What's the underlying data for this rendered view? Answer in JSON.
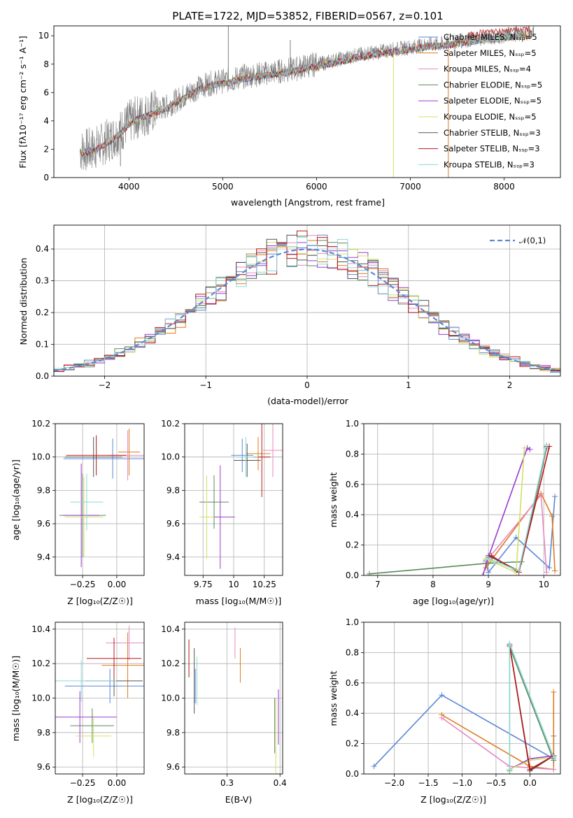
{
  "colors": [
    "#5b87d6",
    "#e07a1f",
    "#e58ac2",
    "#5a8a5a",
    "#9b3bd1",
    "#d4e063",
    "#555555",
    "#b51818",
    "#8fd6d6"
  ],
  "chart_data": [
    {
      "id": "spectrum",
      "type": "line",
      "title": "PLATE=1722, MJD=53852, FIBERID=0567, z=0.101",
      "xlabel": "wavelength [Angstrom, rest frame]",
      "ylabel": "Flux [fλ10⁻¹⁷ erg cm⁻² s⁻¹ A⁻¹]",
      "xlim": [
        3200,
        8600
      ],
      "ylim": [
        0,
        10.7
      ],
      "xticks": [
        4000,
        5000,
        6000,
        7000,
        8000
      ],
      "yticks": [
        0,
        2,
        4,
        6,
        8,
        10
      ],
      "grid": false,
      "legend_position": "top-right",
      "data_curve": {
        "x": [
          3500,
          3600,
          3700,
          3800,
          3900,
          4000,
          4100,
          4200,
          4300,
          4400,
          4500,
          4600,
          4700,
          4800,
          4900,
          5000,
          5100,
          5200,
          5300,
          5400,
          5500,
          5600,
          5700,
          5800,
          5900,
          6000,
          6100,
          6200,
          6300,
          6400,
          6500,
          6600,
          6700,
          6800,
          6900,
          7000,
          7100,
          7200,
          7300,
          7400,
          7500,
          7600,
          7700,
          7800,
          7900,
          8000,
          8100,
          8200,
          8300
        ],
        "y": [
          1.9,
          2.0,
          2.3,
          2.7,
          3.2,
          3.9,
          4.3,
          4.5,
          4.8,
          5.0,
          5.4,
          5.8,
          6.2,
          6.5,
          6.7,
          6.8,
          6.9,
          7.1,
          7.2,
          7.3,
          7.4,
          7.5,
          7.6,
          7.7,
          7.9,
          8.0,
          8.1,
          8.3,
          8.4,
          8.6,
          8.7,
          8.8,
          8.9,
          9.0,
          9.1,
          9.2,
          9.3,
          9.4,
          9.4,
          9.5,
          9.6,
          9.7,
          9.8,
          9.9,
          9.9,
          10.0,
          10.1,
          10.1,
          10.2
        ]
      },
      "series": [
        {
          "name": "Chabrier MILES, N_SSP=5"
        },
        {
          "name": "Salpeter MILES, N_SSP=5"
        },
        {
          "name": "Kroupa MILES, N_SSP=4"
        },
        {
          "name": "Chabrier ELODIE, N_SSP=5"
        },
        {
          "name": "Salpeter ELODIE, N_SSP=5"
        },
        {
          "name": "Kroupa ELODIE, N_SSP=5"
        },
        {
          "name": "Chabrier STELIB, N_SSP=3"
        },
        {
          "name": "Salpeter STELIB, N_SSP=3"
        },
        {
          "name": "Kroupa STELIB, N_SSP=3"
        }
      ]
    },
    {
      "id": "residuals",
      "type": "line",
      "title": "",
      "xlabel": "(data-model)/error",
      "ylabel": "Normed distribution",
      "xlim": [
        -2.5,
        2.5
      ],
      "ylim": [
        0,
        0.475
      ],
      "xticks": [
        -2,
        -1,
        0,
        1,
        2
      ],
      "yticks": [
        0.0,
        0.1,
        0.2,
        0.3,
        0.4
      ],
      "grid": true,
      "legend_position": "top-right",
      "legend": [
        "𝒩(0,1)"
      ],
      "bin_width": 0.1,
      "bin_start": -2.5,
      "reference_curve": {
        "name": "𝒩(0,1)",
        "mean": 0,
        "sigma": 1
      }
    },
    {
      "id": "age-vs-Z",
      "type": "scatter",
      "xlabel": "Z [log₁₀(Z/Z☉)]",
      "ylabel": "age  [log₁₀(age/yr)]",
      "xlim": [
        -0.45,
        0.2
      ],
      "ylim": [
        9.29,
        10.2
      ],
      "xticks": [
        -0.25,
        0.0
      ],
      "yticks": [
        9.4,
        9.6,
        9.8,
        10.0,
        10.2
      ],
      "grid": true,
      "points": [
        {
          "x": -0.03,
          "y": 9.99,
          "ex": 0.36,
          "ey": 0.12
        },
        {
          "x": 0.09,
          "y": 10.03,
          "ex": 0.08,
          "ey": 0.14
        },
        {
          "x": 0.08,
          "y": 10.01,
          "ex": 0.14,
          "ey": 0.15
        },
        {
          "x": -0.25,
          "y": 9.65,
          "ex": 0.17,
          "ey": 0.25
        },
        {
          "x": -0.26,
          "y": 9.65,
          "ex": 0.13,
          "ey": 0.31
        },
        {
          "x": -0.24,
          "y": 9.64,
          "ex": 0.14,
          "ey": 0.24
        },
        {
          "x": -0.17,
          "y": 10.0,
          "ex": 0.21,
          "ey": 0.12
        },
        {
          "x": -0.15,
          "y": 10.01,
          "ex": 0.22,
          "ey": 0.12
        },
        {
          "x": -0.22,
          "y": 9.73,
          "ex": 0.12,
          "ey": 0.17
        }
      ]
    },
    {
      "id": "age-vs-mass",
      "type": "scatter",
      "xlabel": "mass [log₁₀(M/M☉)]",
      "ylabel": "",
      "xlim": [
        9.6,
        10.4
      ],
      "ylim": [
        9.29,
        10.2
      ],
      "xticks": [
        9.75,
        10.0,
        10.25
      ],
      "yticks": [
        9.4,
        9.6,
        9.8,
        10.0,
        10.2
      ],
      "grid": true,
      "points": [
        {
          "x": 10.07,
          "y": 10.01,
          "ex": 0.09,
          "ey": 0.1
        },
        {
          "x": 10.2,
          "y": 10.02,
          "ex": 0.1,
          "ey": 0.1
        },
        {
          "x": 10.32,
          "y": 10.04,
          "ex": 0.08,
          "ey": 0.16
        },
        {
          "x": 9.84,
          "y": 9.73,
          "ex": 0.12,
          "ey": 0.16
        },
        {
          "x": 9.89,
          "y": 9.64,
          "ex": 0.12,
          "ey": 0.31
        },
        {
          "x": 9.78,
          "y": 9.64,
          "ex": 0.06,
          "ey": 0.25
        },
        {
          "x": 10.11,
          "y": 9.98,
          "ex": 0.11,
          "ey": 0.1
        },
        {
          "x": 10.23,
          "y": 10.0,
          "ex": 0.07,
          "ey": 0.24
        },
        {
          "x": 10.1,
          "y": 10.0,
          "ex": 0.1,
          "ey": 0.12
        }
      ]
    },
    {
      "id": "weight-vs-age",
      "type": "line",
      "xlabel": "age  [log₁₀(age/yr)]",
      "ylabel": "mass weight",
      "xlim": [
        6.75,
        10.3
      ],
      "ylim": [
        0,
        1
      ],
      "xticks": [
        7,
        8,
        9,
        10
      ],
      "yticks": [
        0.0,
        0.2,
        0.4,
        0.6,
        0.8,
        1.0
      ],
      "grid": true,
      "series": [
        {
          "x": [
            8.95,
            9.0,
            9.5,
            10.1,
            10.2
          ],
          "y": [
            0.1,
            0.02,
            0.25,
            0.05,
            0.52
          ]
        },
        {
          "x": [
            8.95,
            9.95,
            10.15,
            10.2
          ],
          "y": [
            0.05,
            0.54,
            0.39,
            0.03
          ]
        },
        {
          "x": [
            8.95,
            9.95,
            10.05
          ],
          "y": [
            0.09,
            0.53,
            0.02
          ]
        },
        {
          "x": [
            6.85,
            9.0,
            9.6,
            10.05
          ],
          "y": [
            0.01,
            0.08,
            0.09,
            0.84
          ]
        },
        {
          "x": [
            8.9,
            9.0,
            9.7,
            9.75
          ],
          "y": [
            0.0,
            0.12,
            0.84,
            0.83
          ]
        },
        {
          "x": [
            8.95,
            9.5,
            9.65
          ],
          "y": [
            0.11,
            0.02,
            0.84
          ]
        },
        {
          "x": [
            9.0,
            9.55,
            10.05
          ],
          "y": [
            0.13,
            0.03,
            0.85
          ]
        },
        {
          "x": [
            9.05,
            9.55,
            10.1
          ],
          "y": [
            0.13,
            0.02,
            0.85
          ]
        },
        {
          "x": [
            9.0,
            9.55,
            10.05
          ],
          "y": [
            0.11,
            0.03,
            0.86
          ]
        }
      ]
    },
    {
      "id": "mass-vs-Z",
      "type": "scatter",
      "xlabel": "Z [log₁₀(Z/Z☉)]",
      "ylabel": "mass [log₁₀(M/M☉)]",
      "xlim": [
        -0.45,
        0.2
      ],
      "ylim": [
        9.56,
        10.44
      ],
      "xticks": [
        -0.25,
        0.0
      ],
      "yticks": [
        9.6,
        9.8,
        10.0,
        10.2,
        10.4
      ],
      "grid": true,
      "points": [
        {
          "x": -0.05,
          "y": 10.07,
          "ex": 0.33,
          "ey": 0.1
        },
        {
          "x": 0.08,
          "y": 10.19,
          "ex": 0.19,
          "ey": 0.19
        },
        {
          "x": 0.09,
          "y": 10.32,
          "ex": 0.17,
          "ey": 0.1
        },
        {
          "x": -0.18,
          "y": 9.84,
          "ex": 0.16,
          "ey": 0.1
        },
        {
          "x": -0.27,
          "y": 9.89,
          "ex": 0.27,
          "ey": 0.15
        },
        {
          "x": -0.17,
          "y": 9.78,
          "ex": 0.13,
          "ey": 0.12
        },
        {
          "x": -0.02,
          "y": 10.1,
          "ex": 0.21,
          "ey": 0.09
        },
        {
          "x": -0.02,
          "y": 10.23,
          "ex": 0.2,
          "ey": 0.12
        },
        {
          "x": -0.26,
          "y": 10.1,
          "ex": 0.26,
          "ey": 0.12
        }
      ]
    },
    {
      "id": "mass-vs-ebv",
      "type": "scatter",
      "xlabel": "E(B-V)",
      "ylabel": "",
      "xlim": [
        0.22,
        0.405
      ],
      "ylim": [
        9.56,
        10.44
      ],
      "xticks": [
        0.3,
        0.4
      ],
      "yticks": [
        9.6,
        9.8,
        10.0,
        10.2,
        10.4
      ],
      "grid": true,
      "points": [
        {
          "x": 0.24,
          "y": 10.07,
          "ex": 0,
          "ey": 0.1
        },
        {
          "x": 0.325,
          "y": 10.19,
          "ex": 0,
          "ey": 0.1
        },
        {
          "x": 0.315,
          "y": 10.32,
          "ex": 0,
          "ey": 0.09
        },
        {
          "x": 0.39,
          "y": 9.84,
          "ex": 0,
          "ey": 0.16
        },
        {
          "x": 0.397,
          "y": 9.89,
          "ex": 0,
          "ey": 0.16
        },
        {
          "x": 0.392,
          "y": 9.78,
          "ex": 0,
          "ey": 0.22
        },
        {
          "x": 0.238,
          "y": 10.1,
          "ex": 0,
          "ey": 0.19
        },
        {
          "x": 0.228,
          "y": 10.23,
          "ex": 0,
          "ey": 0.11
        },
        {
          "x": 0.243,
          "y": 10.1,
          "ex": 0,
          "ey": 0.14
        }
      ]
    },
    {
      "id": "weight-vs-Z",
      "type": "line",
      "xlabel": "Z [log₁₀(Z/Z☉)]",
      "ylabel": "mass weight",
      "xlim": [
        -2.45,
        0.45
      ],
      "ylim": [
        0,
        1
      ],
      "xticks": [
        -2.0,
        -1.5,
        -1.0,
        -0.5,
        0.0
      ],
      "yticks": [
        0.0,
        0.2,
        0.4,
        0.6,
        0.8,
        1.0
      ],
      "grid": true,
      "series": [
        {
          "x": [
            -2.3,
            -1.3,
            0.35,
            0.35
          ],
          "y": [
            0.05,
            0.52,
            0.1,
            0.25
          ]
        },
        {
          "x": [
            -1.3,
            0.0,
            0.35,
            0.35
          ],
          "y": [
            0.39,
            0.05,
            0.03,
            0.54
          ]
        },
        {
          "x": [
            -1.3,
            -0.3,
            0.35
          ],
          "y": [
            0.37,
            0.05,
            0.03
          ]
        },
        {
          "x": [
            -0.3,
            -0.3,
            0.35
          ],
          "y": [
            0.02,
            0.84,
            0.09
          ]
        },
        {
          "x": [
            -0.3,
            0.0,
            0.35
          ],
          "y": [
            0.03,
            0.1,
            0.12
          ]
        },
        {
          "x": [
            -0.3,
            0.0,
            0.35
          ],
          "y": [
            0.03,
            0.09,
            0.11
          ]
        },
        {
          "x": [
            -0.3,
            0.0,
            0.35
          ],
          "y": [
            0.85,
            0.02,
            0.12
          ]
        },
        {
          "x": [
            -0.3,
            0.0,
            0.35
          ],
          "y": [
            0.85,
            0.03,
            0.12
          ]
        },
        {
          "x": [
            -0.3,
            -0.3,
            0.35
          ],
          "y": [
            0.03,
            0.86,
            0.11
          ]
        }
      ]
    }
  ]
}
